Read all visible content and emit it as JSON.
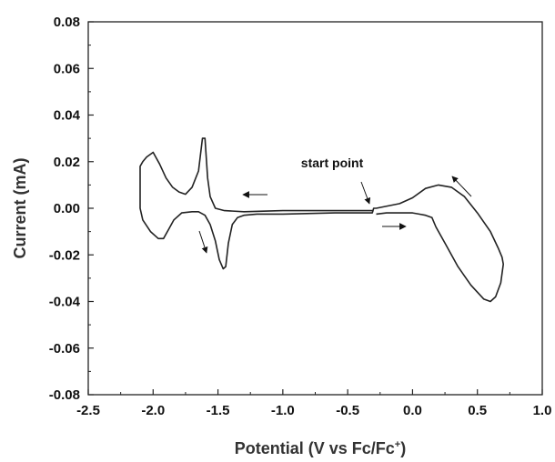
{
  "chart_data": {
    "type": "line",
    "title": "",
    "xlabel": "Potential (V vs Fc/Fc",
    "xlabel_superscript": "+",
    "xlabel_close": ")",
    "ylabel": "Current (mA)",
    "xlim": [
      -2.5,
      1.0
    ],
    "ylim": [
      -0.08,
      0.08
    ],
    "x_ticks": [
      "-2.5",
      "-2.0",
      "-1.5",
      "-1.0",
      "-0.5",
      "0.0",
      "0.5",
      "1.0"
    ],
    "y_ticks": [
      "0.08",
      "0.06",
      "0.04",
      "0.02",
      "0.00",
      "-0.02",
      "-0.04",
      "-0.06",
      "-0.08"
    ],
    "grid": false,
    "series": [
      {
        "color": "#222222",
        "x": [
          -0.3,
          -0.6,
          -1.0,
          -1.3,
          -1.45,
          -1.52,
          -1.56,
          -1.58,
          -1.6,
          -1.62,
          -1.65,
          -1.7,
          -1.75,
          -1.8,
          -1.85,
          -1.9,
          -1.95,
          -2.0,
          -2.05,
          -2.08,
          -2.1,
          -2.1,
          -2.08,
          -2.02,
          -1.96,
          -1.92,
          -1.88,
          -1.84,
          -1.78,
          -1.7,
          -1.65,
          -1.6,
          -1.56,
          -1.52,
          -1.49,
          -1.46,
          -1.44,
          -1.42,
          -1.39,
          -1.35,
          -1.3,
          -1.2,
          -1.0,
          -0.6,
          -0.31,
          -0.3,
          -0.28,
          -0.1,
          0.0,
          0.1,
          0.2,
          0.3,
          0.4,
          0.5,
          0.6,
          0.66,
          0.69,
          0.7,
          0.68,
          0.64,
          0.6,
          0.55,
          0.45,
          0.35,
          0.25,
          0.18,
          0.15,
          0.1,
          0.05,
          0.0,
          -0.1,
          -0.2,
          -0.28
        ],
        "y": [
          -0.001,
          -0.001,
          -0.001,
          -0.0015,
          -0.001,
          0.0,
          0.005,
          0.013,
          0.03,
          0.03,
          0.016,
          0.009,
          0.006,
          0.007,
          0.009,
          0.013,
          0.019,
          0.024,
          0.022,
          0.02,
          0.018,
          0.0,
          -0.005,
          -0.01,
          -0.013,
          -0.013,
          -0.009,
          -0.005,
          -0.002,
          -0.0015,
          -0.0015,
          -0.003,
          -0.007,
          -0.014,
          -0.022,
          -0.026,
          -0.025,
          -0.015,
          -0.007,
          -0.004,
          -0.003,
          -0.0025,
          -0.0025,
          -0.002,
          -0.002,
          0.0,
          0.0,
          0.002,
          0.0045,
          0.0085,
          0.01,
          0.009,
          0.005,
          -0.002,
          -0.01,
          -0.017,
          -0.021,
          -0.024,
          -0.032,
          -0.038,
          -0.04,
          -0.039,
          -0.033,
          -0.025,
          -0.015,
          -0.008,
          -0.004,
          -0.003,
          -0.0025,
          -0.002,
          -0.002,
          -0.002,
          -0.0025
        ]
      }
    ],
    "annotations": [
      {
        "text": "start point",
        "x": -0.62,
        "y": 0.0175
      }
    ]
  }
}
